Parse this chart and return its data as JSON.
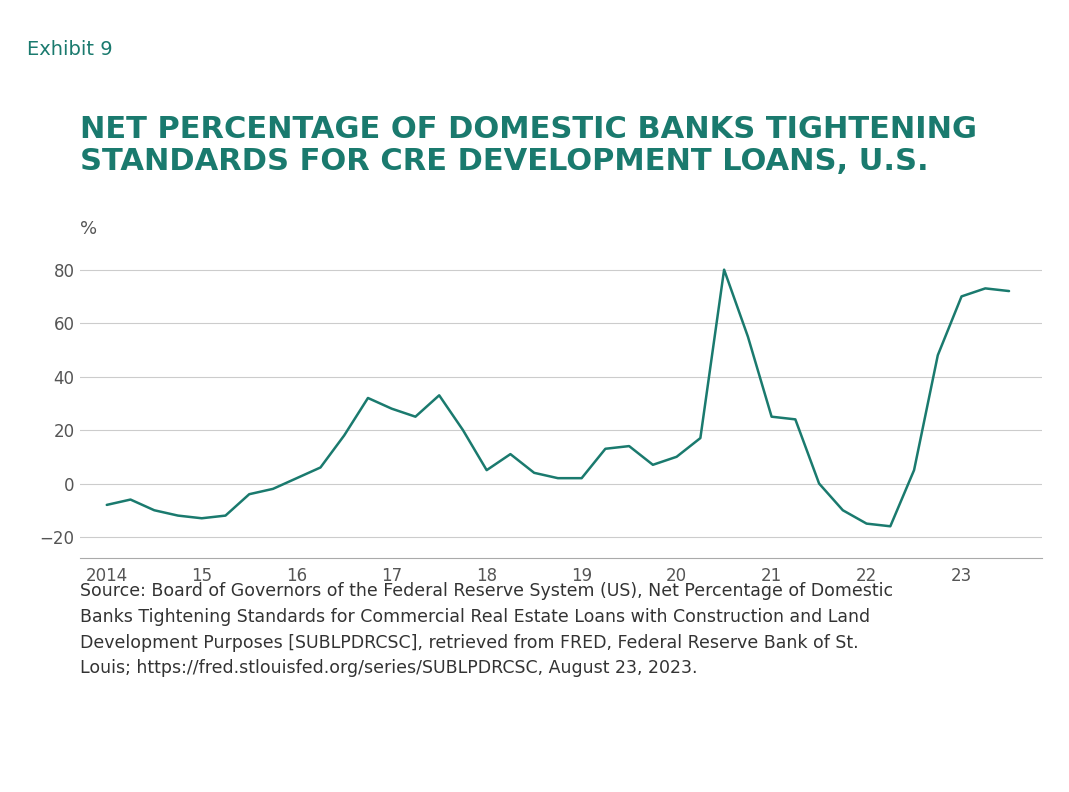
{
  "title_exhibit": "Exhibit 9",
  "title_main": "NET PERCENTAGE OF DOMESTIC BANKS TIGHTENING\nSTANDARDS FOR CRE DEVELOPMENT LOANS, U.S.",
  "ylabel": "%",
  "line_color": "#1a7a6e",
  "background_color": "#ffffff",
  "header_background": "#d8d8d8",
  "ylim": [
    -28,
    92
  ],
  "yticks": [
    -20,
    0,
    20,
    40,
    60,
    80
  ],
  "source_text": "Source: Board of Governors of the Federal Reserve System (US), Net Percentage of Domestic\nBanks Tightening Standards for Commercial Real Estate Loans with Construction and Land\nDevelopment Purposes [SUBLPDRCSC], retrieved from FRED, Federal Reserve Bank of St.\nLouis; https://fred.stlouisfed.org/series/SUBLPDRCSC, August 23, 2023.",
  "x": [
    2014.0,
    2014.25,
    2014.5,
    2014.75,
    2015.0,
    2015.25,
    2015.5,
    2015.75,
    2016.0,
    2016.25,
    2016.5,
    2016.75,
    2017.0,
    2017.25,
    2017.5,
    2017.75,
    2018.0,
    2018.25,
    2018.5,
    2018.75,
    2019.0,
    2019.25,
    2019.5,
    2019.75,
    2020.0,
    2020.25,
    2020.5,
    2020.75,
    2021.0,
    2021.25,
    2021.5,
    2021.75,
    2022.0,
    2022.25,
    2022.5,
    2022.75,
    2023.0,
    2023.25,
    2023.5
  ],
  "y": [
    -8,
    -6,
    -10,
    -12,
    -13,
    -12,
    -4,
    -2,
    2,
    6,
    18,
    32,
    28,
    25,
    33,
    20,
    5,
    11,
    4,
    2,
    2,
    13,
    14,
    7,
    10,
    17,
    80,
    55,
    25,
    24,
    0,
    -10,
    -15,
    -16,
    5,
    48,
    70,
    73,
    72
  ],
  "xticks": [
    2014,
    2015,
    2016,
    2017,
    2018,
    2019,
    2020,
    2021,
    2022,
    2023
  ],
  "xticklabels": [
    "2014",
    "15",
    "16",
    "17",
    "18",
    "19",
    "20",
    "21",
    "22",
    "23"
  ],
  "line_width": 1.8,
  "exhibit_fontsize": 14,
  "title_fontsize": 22,
  "axis_fontsize": 12,
  "source_fontsize": 12.5
}
